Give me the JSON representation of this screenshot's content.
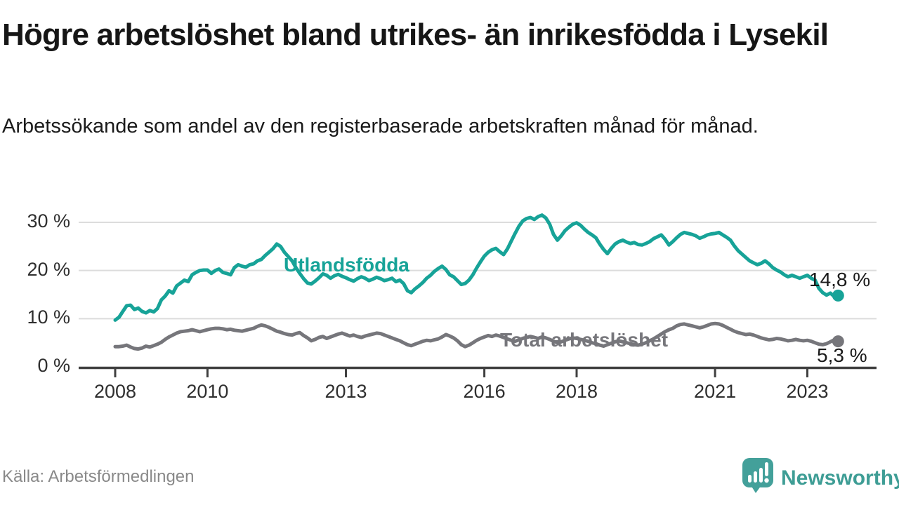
{
  "header": {
    "title": "Högre arbetslöshet bland utrikes- än inrikesfödda i Lysekil",
    "subtitle": "Arbetssökande som andel av den registerbaserade arbetskraften månad för månad."
  },
  "footer": {
    "source": "Källa: Arbetsförmedlingen",
    "brand": "Newsworthy",
    "brand_icon": "newsworthy-speech-bubble-bar-chart-icon"
  },
  "colors": {
    "foreign_born": "#17a398",
    "total": "#76767b",
    "grid": "#dcdcdc",
    "axis": "#404040",
    "text": "#1a1a1a",
    "muted": "#898989",
    "brand": "#3e9d95"
  },
  "chart_data": {
    "type": "line",
    "title": "Högre arbetslöshet bland utrikes- än inrikesfödda i Lysekil",
    "subtitle": "Arbetssökande som andel av den registerbaserade arbetskraften månad för månad.",
    "unit": "%",
    "x_start_year": 2008,
    "x_interval": "monthly",
    "ylim": [
      0,
      33
    ],
    "grid": "horizontal",
    "legend_position": "inline-labels",
    "y_ticks": [
      {
        "value": 0,
        "label": "0 %"
      },
      {
        "value": 10,
        "label": "10 %"
      },
      {
        "value": 20,
        "label": "20 %"
      },
      {
        "value": 30,
        "label": "30 %"
      }
    ],
    "x_ticks": [
      {
        "year": 2008,
        "label": "2008"
      },
      {
        "year": 2010,
        "label": "2010"
      },
      {
        "year": 2013,
        "label": "2013"
      },
      {
        "year": 2016,
        "label": "2016"
      },
      {
        "year": 2018,
        "label": "2018"
      },
      {
        "year": 2021,
        "label": "2021"
      },
      {
        "year": 2023,
        "label": "2023"
      }
    ],
    "series": [
      {
        "name": "Utlandsfödda",
        "color": "#17a398",
        "end_label": "14,8 %",
        "end_value": 14.8,
        "values": [
          9.7,
          10.3,
          11.5,
          12.7,
          12.8,
          11.9,
          12.2,
          11.5,
          11.2,
          11.7,
          11.4,
          12.1,
          13.9,
          14.7,
          15.8,
          15.3,
          16.8,
          17.4,
          18.0,
          17.7,
          19.1,
          19.6,
          20.0,
          20.1,
          20.1,
          19.4,
          20.0,
          20.3,
          19.6,
          19.4,
          19.1,
          20.6,
          21.2,
          20.9,
          20.7,
          21.2,
          21.4,
          22.0,
          22.3,
          23.1,
          23.8,
          24.5,
          25.5,
          25.0,
          23.8,
          22.9,
          22.0,
          20.6,
          19.4,
          18.3,
          17.4,
          17.2,
          17.8,
          18.5,
          19.3,
          19.0,
          18.4,
          18.9,
          19.2,
          18.8,
          18.5,
          18.1,
          17.8,
          18.3,
          18.7,
          18.4,
          17.9,
          18.2,
          18.6,
          18.3,
          17.9,
          18.1,
          18.4,
          17.7,
          18.0,
          17.3,
          15.8,
          15.4,
          16.2,
          16.8,
          17.5,
          18.4,
          19.0,
          19.8,
          20.4,
          20.9,
          20.2,
          19.1,
          18.7,
          17.9,
          17.1,
          17.3,
          18.0,
          19.1,
          20.5,
          21.8,
          23.0,
          23.8,
          24.3,
          24.6,
          23.9,
          23.3,
          24.5,
          26.1,
          27.7,
          29.2,
          30.3,
          30.8,
          31.0,
          30.6,
          31.2,
          31.5,
          30.9,
          29.6,
          27.5,
          26.3,
          27.2,
          28.3,
          29.0,
          29.6,
          29.9,
          29.4,
          28.6,
          27.9,
          27.4,
          26.8,
          25.5,
          24.4,
          23.5,
          24.6,
          25.5,
          26.0,
          26.3,
          25.9,
          25.6,
          25.8,
          25.4,
          25.3,
          25.6,
          26.0,
          26.6,
          27.0,
          27.4,
          26.5,
          25.3,
          26.0,
          26.8,
          27.5,
          27.9,
          27.7,
          27.5,
          27.2,
          26.7,
          27.0,
          27.4,
          27.6,
          27.7,
          27.9,
          27.4,
          26.9,
          26.3,
          25.1,
          24.1,
          23.4,
          22.7,
          22.0,
          21.6,
          21.2,
          21.5,
          22.0,
          21.4,
          20.6,
          20.1,
          19.7,
          19.1,
          18.7,
          19.0,
          18.7,
          18.4,
          18.7,
          19.0,
          18.4,
          18.0,
          16.3,
          15.4,
          14.9,
          15.3,
          14.6,
          14.8
        ]
      },
      {
        "name": "Total arbetslöshet",
        "color": "#76767b",
        "end_label": "5,3 %",
        "end_value": 5.3,
        "values": [
          4.2,
          4.2,
          4.3,
          4.5,
          4.1,
          3.8,
          3.7,
          3.9,
          4.3,
          4.1,
          4.4,
          4.7,
          5.1,
          5.7,
          6.2,
          6.6,
          7.0,
          7.3,
          7.4,
          7.5,
          7.7,
          7.5,
          7.3,
          7.5,
          7.7,
          7.9,
          8.0,
          8.0,
          7.9,
          7.7,
          7.8,
          7.6,
          7.5,
          7.4,
          7.6,
          7.8,
          8.0,
          8.4,
          8.7,
          8.5,
          8.2,
          7.8,
          7.4,
          7.2,
          6.9,
          6.7,
          6.6,
          6.9,
          7.1,
          6.5,
          6.0,
          5.4,
          5.7,
          6.1,
          6.3,
          5.9,
          6.2,
          6.5,
          6.8,
          7.0,
          6.7,
          6.4,
          6.6,
          6.3,
          6.1,
          6.4,
          6.6,
          6.8,
          7.0,
          6.9,
          6.6,
          6.3,
          6.0,
          5.7,
          5.4,
          5.0,
          4.6,
          4.4,
          4.7,
          5.0,
          5.3,
          5.5,
          5.4,
          5.6,
          5.8,
          6.2,
          6.7,
          6.4,
          6.0,
          5.4,
          4.6,
          4.2,
          4.5,
          5.0,
          5.5,
          5.9,
          6.2,
          6.5,
          6.3,
          6.6,
          6.4,
          6.1,
          5.8,
          5.5,
          5.3,
          5.6,
          5.9,
          6.1,
          6.3,
          6.1,
          5.9,
          6.2,
          6.0,
          5.7,
          5.3,
          5.0,
          5.2,
          5.5,
          5.8,
          6.0,
          5.9,
          5.7,
          5.5,
          5.3,
          5.0,
          4.8,
          4.5,
          4.3,
          4.6,
          4.9,
          5.2,
          5.4,
          5.2,
          5.0,
          4.8,
          4.6,
          4.5,
          4.7,
          5.0,
          5.4,
          5.8,
          6.3,
          6.8,
          7.3,
          7.7,
          8.0,
          8.5,
          8.8,
          8.9,
          8.7,
          8.5,
          8.3,
          8.1,
          8.3,
          8.6,
          8.9,
          9.0,
          8.9,
          8.6,
          8.2,
          7.8,
          7.4,
          7.1,
          6.9,
          6.7,
          6.8,
          6.6,
          6.3,
          6.0,
          5.8,
          5.6,
          5.7,
          5.9,
          5.8,
          5.6,
          5.4,
          5.5,
          5.7,
          5.5,
          5.4,
          5.5,
          5.3,
          5.0,
          4.7,
          4.6,
          4.8,
          5.2,
          5.6,
          5.3
        ]
      }
    ]
  }
}
